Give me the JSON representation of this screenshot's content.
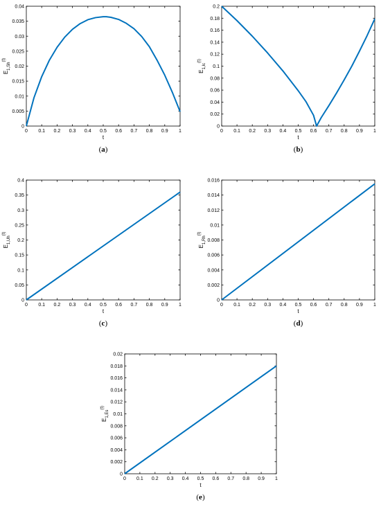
{
  "series_color": "#0072BD",
  "chart_data": [
    {
      "id": "a",
      "type": "line",
      "caption": "a",
      "xlabel": "t",
      "ylabel_main": "E",
      "ylabel_sub": "1,Sh",
      "ylabel_paren": "(t)",
      "xlim": [
        0,
        1
      ],
      "ylim": [
        0,
        0.04
      ],
      "xticks": [
        "0",
        "0.1",
        "0.2",
        "0.3",
        "0.4",
        "0.5",
        "0.6",
        "0.7",
        "0.8",
        "0.9",
        "1"
      ],
      "yticks": [
        "0",
        "0.005",
        "0.01",
        "0.015",
        "0.02",
        "0.025",
        "0.03",
        "0.035",
        "0.04"
      ],
      "x": [
        0,
        0.05,
        0.1,
        0.15,
        0.2,
        0.25,
        0.3,
        0.35,
        0.4,
        0.45,
        0.5,
        0.52,
        0.55,
        0.6,
        0.65,
        0.7,
        0.75,
        0.8,
        0.85,
        0.9,
        0.95,
        1.0
      ],
      "y": [
        0,
        0.0095,
        0.0165,
        0.022,
        0.0263,
        0.0297,
        0.0323,
        0.0342,
        0.0355,
        0.0362,
        0.0365,
        0.0365,
        0.0363,
        0.0356,
        0.0343,
        0.0325,
        0.0299,
        0.0265,
        0.022,
        0.017,
        0.0112,
        0.0048
      ]
    },
    {
      "id": "b",
      "type": "line",
      "caption": "b",
      "xlabel": "t",
      "ylabel_main": "E",
      "ylabel_sub": "1,Ic",
      "ylabel_paren": "(t)",
      "xlim": [
        0,
        1
      ],
      "ylim": [
        0,
        0.2
      ],
      "xticks": [
        "0",
        "0.1",
        "0.2",
        "0.3",
        "0.4",
        "0.5",
        "0.6",
        "0.7",
        "0.8",
        "0.9",
        "1"
      ],
      "yticks": [
        "0",
        "0.02",
        "0.04",
        "0.06",
        "0.08",
        "0.1",
        "0.12",
        "0.14",
        "0.16",
        "0.18",
        "0.2"
      ],
      "x": [
        0,
        0.1,
        0.2,
        0.3,
        0.4,
        0.5,
        0.55,
        0.6,
        0.62,
        0.65,
        0.7,
        0.75,
        0.8,
        0.85,
        0.9,
        0.95,
        1.0
      ],
      "y": [
        0.2,
        0.176,
        0.15,
        0.122,
        0.092,
        0.059,
        0.041,
        0.018,
        0.0,
        0.014,
        0.034,
        0.055,
        0.077,
        0.1,
        0.125,
        0.151,
        0.179
      ]
    },
    {
      "id": "c",
      "type": "line",
      "caption": "c",
      "xlabel": "t",
      "ylabel_main": "E",
      "ylabel_sub": "1,Uh",
      "ylabel_paren": "(t)",
      "xlim": [
        0,
        1
      ],
      "ylim": [
        0,
        0.4
      ],
      "xticks": [
        "0",
        "0.1",
        "0.2",
        "0.3",
        "0.4",
        "0.5",
        "0.6",
        "0.7",
        "0.8",
        "0.9",
        "1"
      ],
      "yticks": [
        "0",
        "0.05",
        "0.1",
        "0.15",
        "0.2",
        "0.25",
        "0.3",
        "0.35",
        "0.4"
      ],
      "x": [
        0,
        1
      ],
      "y": [
        0,
        0.36
      ]
    },
    {
      "id": "d",
      "type": "line",
      "caption": "d",
      "xlabel": "t",
      "ylabel_main": "E",
      "ylabel_sub": "1,Rh",
      "ylabel_paren": "(t)",
      "xlim": [
        0,
        1
      ],
      "ylim": [
        0,
        0.016
      ],
      "xticks": [
        "0",
        "0.1",
        "0.2",
        "0.3",
        "0.4",
        "0.5",
        "0.6",
        "0.7",
        "0.8",
        "0.9",
        "1"
      ],
      "yticks": [
        "0",
        "0.002",
        "0.004",
        "0.006",
        "0.008",
        "0.01",
        "0.012",
        "0.014",
        "0.016"
      ],
      "x": [
        0,
        1
      ],
      "y": [
        0,
        0.0155
      ]
    },
    {
      "id": "e",
      "type": "line",
      "caption": "e",
      "xlabel": "t",
      "ylabel_main": "E",
      "ylabel_sub": "1,Es",
      "ylabel_paren": "(t)",
      "xlim": [
        0,
        1
      ],
      "ylim": [
        0,
        0.02
      ],
      "xticks": [
        "0",
        "0.1",
        "0.2",
        "0.3",
        "0.4",
        "0.5",
        "0.6",
        "0.7",
        "0.8",
        "0.9",
        "1"
      ],
      "yticks": [
        "0",
        "0.002",
        "0.004",
        "0.006",
        "0.008",
        "0.01",
        "0.012",
        "0.014",
        "0.016",
        "0.018",
        "0.02"
      ],
      "x": [
        0,
        1
      ],
      "y": [
        0,
        0.018
      ]
    }
  ]
}
